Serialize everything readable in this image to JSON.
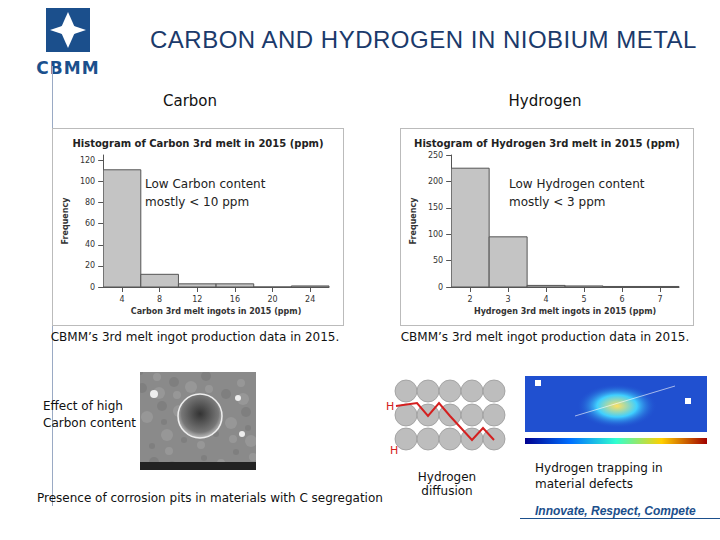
{
  "header": {
    "logo": "CBMM",
    "title": "CARBON AND HYDROGEN IN NIOBIUM METAL"
  },
  "sections": [
    {
      "heading": "Carbon",
      "caption": "CBMM’s 3rd melt ingot production data in 2015."
    },
    {
      "heading": "Hydrogen",
      "caption": "CBMM’s 3rd melt ingot production data in 2015."
    }
  ],
  "chart_data": [
    {
      "type": "histogram",
      "title": "Histogram of Carbon 3rd melt in 2015 (ppm)",
      "xlabel": "Carbon 3rd melt ingots in 2015 (ppm)",
      "ylabel": "Frequency",
      "bins": [
        2,
        6,
        10,
        14,
        18,
        22,
        26
      ],
      "counts": [
        111,
        12,
        3,
        3,
        0,
        1
      ],
      "xlim": [
        2,
        26
      ],
      "xticks": [
        4,
        8,
        12,
        16,
        20,
        24
      ],
      "ylim": [
        0,
        125
      ],
      "yticks": [
        0,
        20,
        40,
        60,
        80,
        100,
        120
      ],
      "color": "#c4c4c4",
      "grid": false,
      "annotation": "Low Carbon content mostly < 10 ppm"
    },
    {
      "type": "histogram",
      "title": "Histogram of Hydrogen 3rd melt in 2015 (ppm)",
      "xlabel": "Hydrogen 3rd melt ingots in 2015 (ppm)",
      "ylabel": "Frequency",
      "bins": [
        1.5,
        2.5,
        3.5,
        4.5,
        5.5,
        6.5,
        7.5
      ],
      "counts": [
        225,
        95,
        3,
        2,
        1,
        1
      ],
      "xlim": [
        1.5,
        7.5
      ],
      "xticks": [
        2,
        3,
        4,
        5,
        6,
        7
      ],
      "ylim": [
        0,
        250
      ],
      "yticks": [
        0,
        50,
        100,
        150,
        200,
        250
      ],
      "color": "#c4c4c4",
      "grid": false,
      "annotation": "Low Hydrogen content mostly < 3 ppm"
    }
  ],
  "figures": {
    "carbon_effect": {
      "label": "Effect of high Carbon content",
      "caption": "Presence of corrosion pits in materials with C segregation"
    },
    "hydrogen_diffusion": {
      "caption": "Hydrogen diffusion",
      "atom_labels": [
        "H",
        "H"
      ]
    },
    "hydrogen_trapping": {
      "caption": "Hydrogen trapping in material defects"
    }
  },
  "footer": "Innovate, Respect, Compete"
}
